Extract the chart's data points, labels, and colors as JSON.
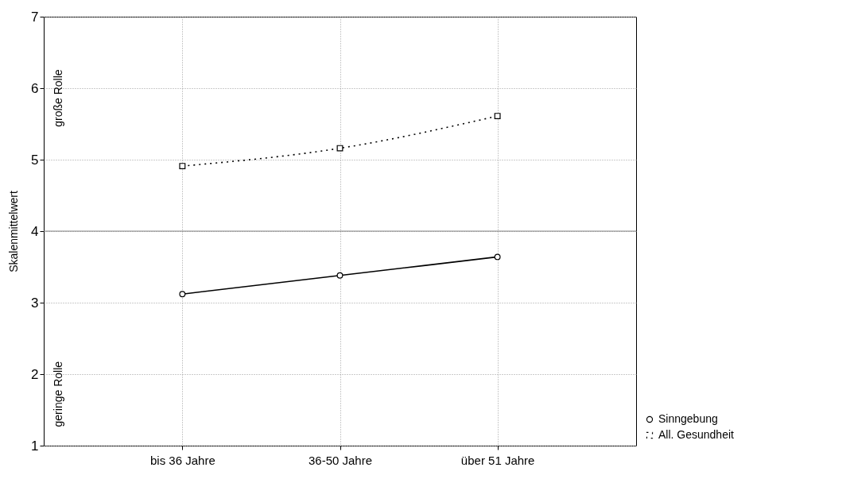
{
  "chart_data": {
    "type": "line",
    "ylabel": "Skalenmittelwert",
    "categories": [
      "bis 36 Jahre",
      "36-50 Jahre",
      "über 51 Jahre"
    ],
    "series": [
      {
        "name": "Sinngebung",
        "color": "#000000",
        "values": [
          3.12,
          3.38,
          3.64
        ],
        "marker": "circle",
        "line_style": "solid"
      },
      {
        "name": "All. Gesundheit",
        "color": "#000000",
        "values": [
          4.91,
          5.16,
          5.61
        ],
        "marker": "square",
        "line_style": "dotted"
      }
    ],
    "ylim": [
      1,
      7
    ],
    "yticks": [
      1,
      2,
      3,
      4,
      5,
      6,
      7
    ],
    "grid": true,
    "legend": "bottom right",
    "ref_lines": [
      {
        "axis": "y",
        "value": 4,
        "color": "#808080"
      }
    ],
    "annotations": [
      "große Rolle",
      "geringe Rolle"
    ]
  }
}
